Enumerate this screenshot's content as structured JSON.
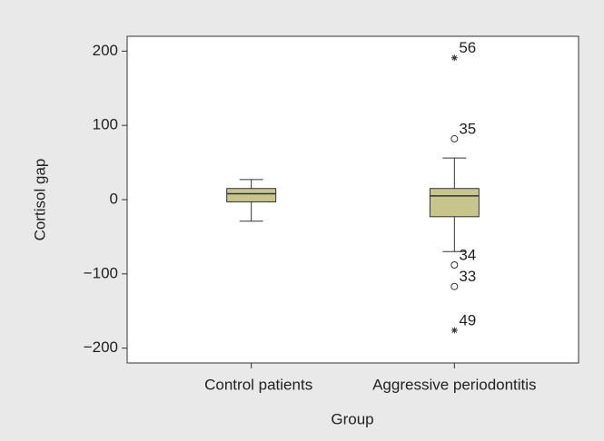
{
  "chart_data": {
    "type": "box",
    "x_label": "Group",
    "y_label": "Cortisol gap",
    "categories": [
      "Control patients",
      "Aggressive periodontitis"
    ],
    "color": "#c8c58c",
    "ylim": [
      -220,
      220
    ],
    "yticks": [
      {
        "value": -200,
        "label": "−200"
      },
      {
        "value": -100,
        "label": "−100"
      },
      0,
      100,
      200
    ],
    "boxes": [
      {
        "whisker_low": -29,
        "q1": -3,
        "median": 8,
        "q3": 15,
        "whisker_high": 27,
        "outliers": []
      },
      {
        "whisker_low": -70,
        "q1": -23,
        "median": 5,
        "q3": 15,
        "whisker_high": 56,
        "outliers": [
          {
            "value": 191,
            "label": "56",
            "marker": "star"
          },
          {
            "value": 82,
            "label": "35",
            "marker": "circle"
          },
          {
            "value": -88,
            "label": "34",
            "marker": "circle"
          },
          {
            "value": -117,
            "label": "33",
            "marker": "circle"
          },
          {
            "value": -176,
            "label": "49",
            "marker": "star"
          }
        ]
      }
    ]
  }
}
